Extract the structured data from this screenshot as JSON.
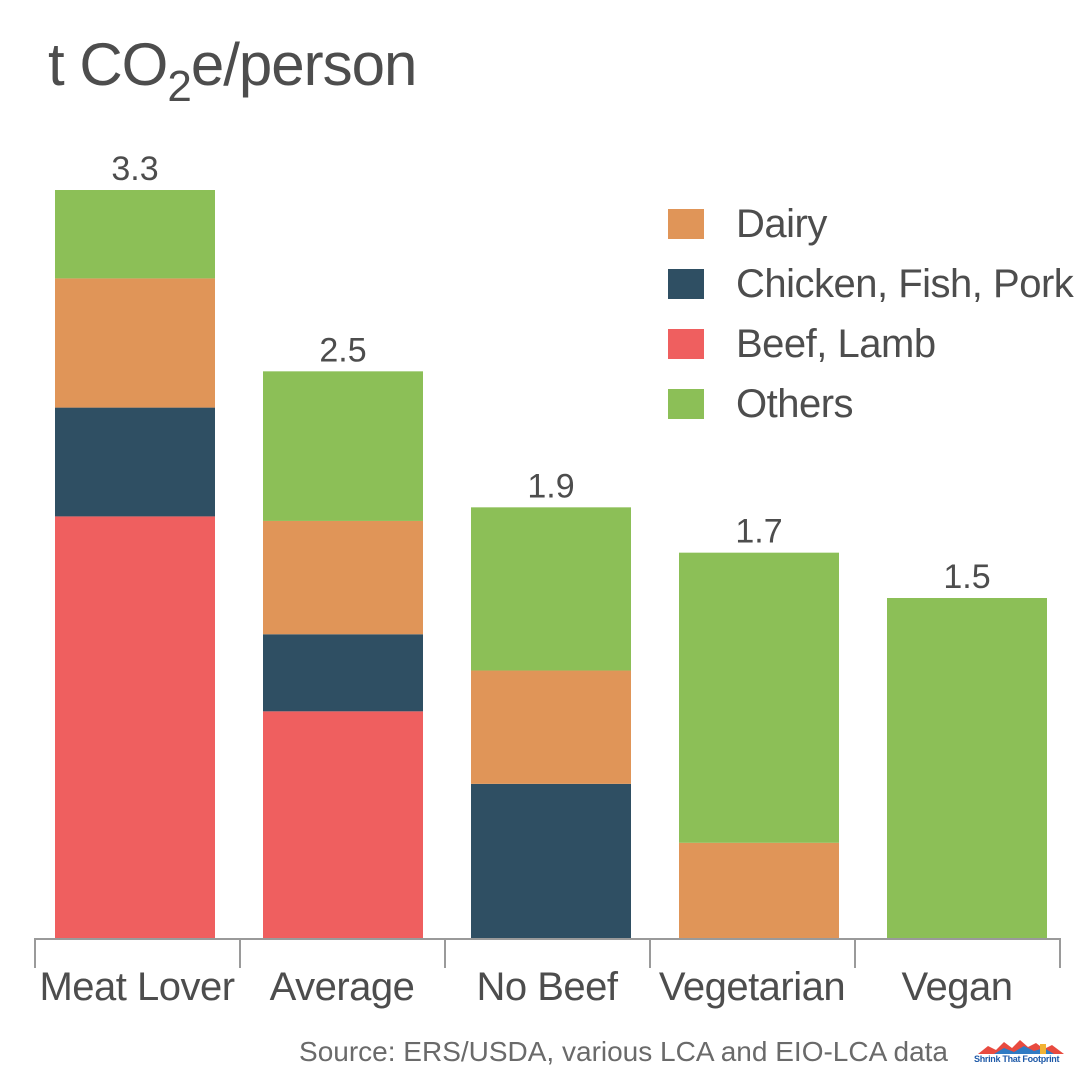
{
  "chart_data": {
    "type": "bar",
    "stacked": true,
    "title_main": "t CO",
    "title_sub": "2",
    "title_tail": "e/person",
    "categories": [
      "Meat Lover",
      "Average",
      "No Beef",
      "Vegetarian",
      "Vegan"
    ],
    "totals_labels": [
      "3.3",
      "2.5",
      "1.9",
      "1.7",
      "1.5"
    ],
    "totals": [
      3.3,
      2.5,
      1.9,
      1.7,
      1.5
    ],
    "series": [
      {
        "name": "Beef, Lamb",
        "color": "#ef5f5f",
        "values": [
          1.86,
          1.0,
          0,
          0,
          0
        ]
      },
      {
        "name": "Chicken, Fish, Pork",
        "color": "#2f4f63",
        "values": [
          0.48,
          0.34,
          0.68,
          0,
          0
        ]
      },
      {
        "name": "Dairy",
        "color": "#e09558",
        "values": [
          0.57,
          0.5,
          0.5,
          0.42,
          0
        ]
      },
      {
        "name": "Others",
        "color": "#8cbf57",
        "values": [
          0.39,
          0.66,
          0.72,
          1.28,
          1.5
        ]
      }
    ],
    "legend_order": [
      "Dairy",
      "Chicken, Fish, Pork",
      "Beef, Lamb",
      "Others"
    ],
    "ylim": [
      0,
      3.3
    ],
    "grid": false,
    "legend_position": "top-right"
  },
  "source": "Source: ERS/USDA, various LCA and EIO-LCA data",
  "logo_text": "Shrink That Footprint"
}
